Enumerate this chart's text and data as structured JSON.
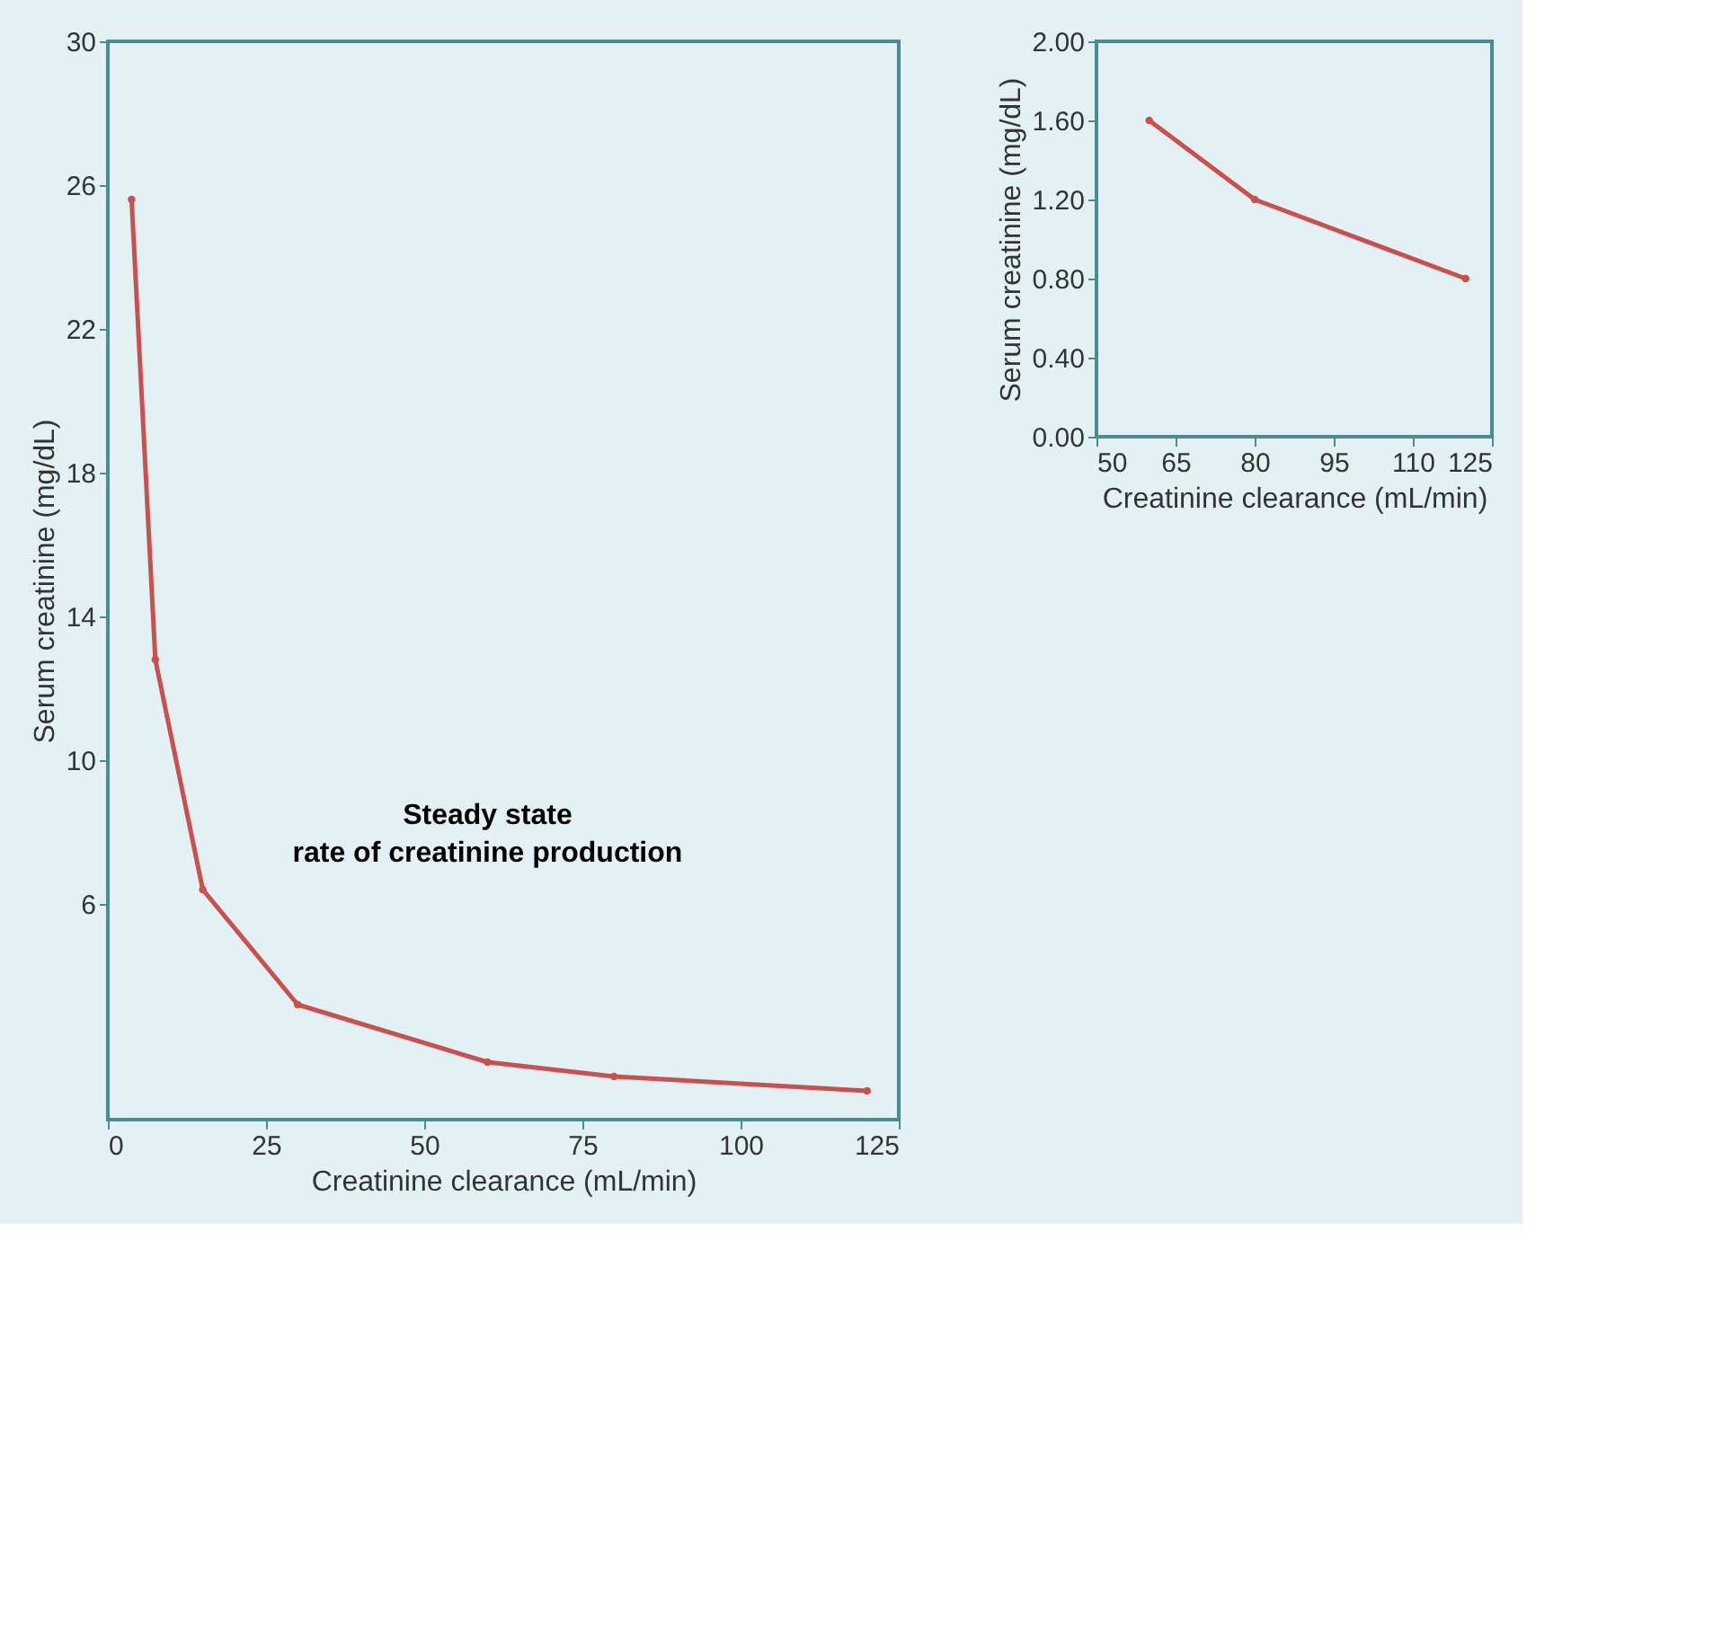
{
  "chart_data": [
    {
      "type": "line",
      "xlabel": "Creatinine clearance (mL/min)",
      "ylabel": "Serum creatinine (mg/dL)",
      "x": [
        3.75,
        7.5,
        15,
        30,
        60,
        80,
        120
      ],
      "series": [
        {
          "color": "#c9504e",
          "values": [
            25.6,
            12.8,
            6.4,
            3.2,
            1.6,
            1.2,
            0.8
          ]
        }
      ],
      "xlim": [
        0,
        125
      ],
      "ylim": [
        0,
        30
      ],
      "xticks": [
        0,
        25,
        50,
        75,
        100,
        125
      ],
      "yticks": [
        6,
        10,
        14,
        18,
        22,
        26,
        30
      ],
      "grid": false,
      "marker": "circle",
      "line_style": "solid",
      "annotations": [
        "Steady state",
        "rate of creatinine production"
      ]
    },
    {
      "type": "line",
      "xlabel": "Creatinine clearance (mL/min)",
      "ylabel": "Serum creatinine (mg/dL)",
      "x": [
        60,
        80,
        120
      ],
      "series": [
        {
          "color": "#c9504e",
          "values": [
            1.6,
            1.2,
            0.8
          ]
        }
      ],
      "xlim": [
        50,
        125
      ],
      "ylim": [
        0,
        2
      ],
      "xticks": [
        50,
        65,
        80,
        95,
        110,
        125
      ],
      "yticks": [
        {
          "value": 0,
          "label": "0.00"
        },
        {
          "value": 0.4,
          "label": "0.40"
        },
        {
          "value": 0.8,
          "label": "0.80"
        },
        {
          "value": 1.2,
          "label": "1.20"
        },
        {
          "value": 1.6,
          "label": "1.60"
        },
        {
          "value": 2,
          "label": "2.00"
        }
      ],
      "grid": false,
      "marker": "circle",
      "line_style": "solid"
    }
  ]
}
